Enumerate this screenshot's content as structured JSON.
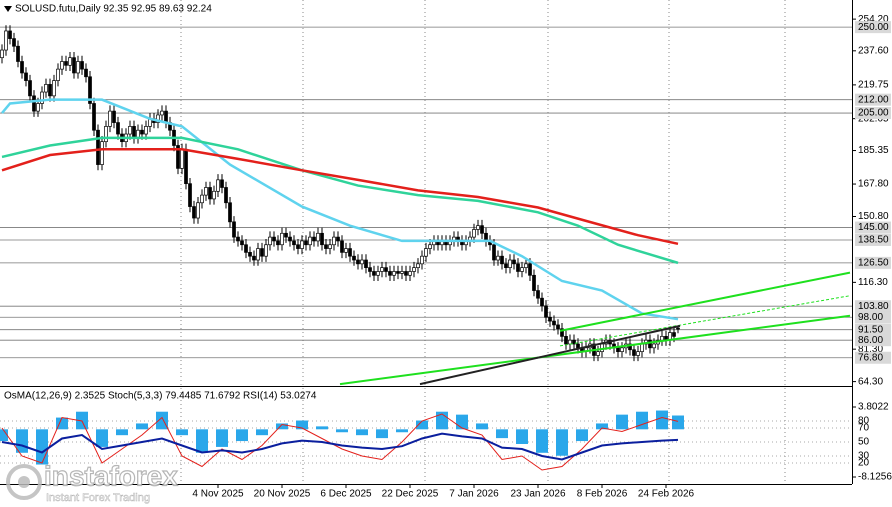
{
  "chart_data": [
    {
      "type": "candlestick",
      "title": "SOLUSD.futu,Daily  92.35 92.95 89.63 92.24",
      "xlim": [
        0,
        212
      ],
      "xticks": [
        {
          "value": 54,
          "label": "4 Nov 2025"
        },
        {
          "value": 70,
          "label": "20 Nov 2025"
        },
        {
          "value": 86,
          "label": "6 Dec 2025"
        },
        {
          "value": 102,
          "label": "22 Dec 2025"
        },
        {
          "value": 118,
          "label": "7 Jan 2026"
        },
        {
          "value": 134,
          "label": "23 Jan 2026"
        },
        {
          "value": 150,
          "label": "8 Feb 2026"
        },
        {
          "value": 166,
          "label": "24 Feb 2026"
        }
      ],
      "ylim": [
        62,
        261.6
      ],
      "yticks": [
        {
          "value": 254.2,
          "label": "254.20"
        },
        {
          "value": 237.6,
          "label": "237.60"
        },
        {
          "value": 219.75,
          "label": "219.75"
        },
        {
          "value": 202.05,
          "label": "202.05"
        },
        {
          "value": 185.35,
          "label": "185.35"
        },
        {
          "value": 167.8,
          "label": "167.80"
        },
        {
          "value": 150.8,
          "label": "150.80"
        },
        {
          "value": 116.3,
          "label": "116.30"
        },
        {
          "value": 81.3,
          "label": "81.30"
        },
        {
          "value": 64.3,
          "label": "64.30"
        }
      ],
      "levels": [
        {
          "value": 250,
          "label": "250.00"
        },
        {
          "value": 212,
          "label": "212.00"
        },
        {
          "value": 205,
          "label": "205.00"
        },
        {
          "value": 145,
          "label": "145.00"
        },
        {
          "value": 138.5,
          "label": "138.50"
        },
        {
          "value": 126.5,
          "label": "126.50"
        },
        {
          "value": 103.8,
          "label": "103.80"
        },
        {
          "value": 98,
          "label": "98.00"
        },
        {
          "value": 91.5,
          "label": "91.50"
        },
        {
          "value": 86,
          "label": "86.00"
        },
        {
          "value": 76.8,
          "label": "76.80"
        }
      ],
      "open": [
        234,
        238,
        248,
        244,
        240,
        232,
        226,
        222,
        214,
        206,
        210,
        216,
        220,
        214,
        222,
        228,
        232,
        230,
        234,
        226,
        232,
        228,
        224,
        210,
        196,
        178,
        190,
        198,
        206,
        200,
        194,
        190,
        194,
        198,
        192,
        196,
        194,
        198,
        202,
        200,
        204,
        206,
        200,
        196,
        188,
        176,
        186,
        168,
        156,
        150,
        158,
        162,
        166,
        160,
        164,
        170,
        166,
        158,
        148,
        140,
        138,
        136,
        132,
        130,
        128,
        134,
        130,
        136,
        140,
        138,
        136,
        142,
        140,
        138,
        136,
        134,
        138,
        136,
        140,
        138,
        142,
        136,
        134,
        136,
        140,
        138,
        132,
        134,
        130,
        128,
        126,
        128,
        124,
        122,
        120,
        122,
        124,
        122,
        120,
        122,
        121,
        122,
        120,
        122,
        124,
        126,
        130,
        134,
        136,
        138,
        136,
        138,
        136,
        138,
        140,
        138,
        136,
        138,
        140,
        144,
        146,
        142,
        138,
        136,
        128,
        130,
        126,
        124,
        128,
        126,
        122,
        124,
        126,
        120,
        112,
        108,
        104,
        98,
        96,
        94,
        92,
        88,
        84,
        86,
        84,
        82,
        80,
        82,
        84,
        78,
        80,
        84,
        86,
        84,
        82,
        80,
        82,
        84,
        81,
        78,
        80,
        84,
        86,
        82,
        84,
        86,
        88,
        86,
        90,
        92.35
      ],
      "high": [
        241,
        251,
        251,
        247,
        243,
        235,
        229,
        225,
        217,
        213,
        219,
        223,
        223,
        225,
        231,
        235,
        235,
        237,
        237,
        235,
        235,
        231,
        227,
        213,
        199,
        193,
        201,
        209,
        209,
        203,
        197,
        197,
        201,
        201,
        199,
        199,
        201,
        205,
        205,
        207,
        209,
        209,
        203,
        199,
        191,
        189,
        189,
        171,
        159,
        161,
        165,
        169,
        169,
        167,
        173,
        173,
        169,
        161,
        151,
        143,
        141,
        139,
        135,
        133,
        137,
        137,
        139,
        143,
        143,
        141,
        145,
        145,
        143,
        141,
        139,
        141,
        141,
        143,
        143,
        145,
        145,
        139,
        139,
        143,
        143,
        141,
        137,
        137,
        133,
        131,
        131,
        131,
        127,
        125,
        125,
        127,
        127,
        125,
        125,
        125,
        125,
        125,
        125,
        127,
        129,
        133,
        137,
        139,
        141,
        141,
        141,
        141,
        141,
        143,
        143,
        141,
        141,
        143,
        147,
        149,
        149,
        145,
        141,
        139,
        133,
        133,
        129,
        131,
        131,
        129,
        127,
        129,
        129,
        123,
        115,
        111,
        107,
        101,
        99,
        97,
        95,
        91,
        89,
        89,
        87,
        85,
        85,
        87,
        87,
        83,
        87,
        89,
        89,
        87,
        85,
        85,
        87,
        87,
        84,
        83,
        87,
        89,
        89,
        87,
        89,
        91,
        91,
        93,
        93,
        92.95
      ],
      "low": [
        231,
        235,
        241,
        237,
        229,
        223,
        219,
        211,
        203,
        203,
        207,
        213,
        211,
        211,
        219,
        225,
        227,
        227,
        223,
        223,
        225,
        221,
        207,
        193,
        175,
        175,
        187,
        195,
        197,
        191,
        187,
        187,
        191,
        189,
        189,
        191,
        191,
        195,
        197,
        197,
        201,
        197,
        193,
        185,
        173,
        173,
        165,
        153,
        147,
        147,
        155,
        159,
        157,
        157,
        161,
        163,
        155,
        145,
        137,
        135,
        133,
        129,
        127,
        125,
        125,
        127,
        127,
        133,
        135,
        133,
        133,
        137,
        135,
        133,
        131,
        131,
        133,
        133,
        135,
        135,
        133,
        131,
        131,
        133,
        135,
        129,
        129,
        127,
        125,
        123,
        123,
        121,
        119,
        117,
        117,
        119,
        119,
        117,
        117,
        118,
        118,
        117,
        117,
        119,
        121,
        123,
        127,
        131,
        133,
        133,
        133,
        133,
        133,
        135,
        135,
        133,
        133,
        135,
        137,
        141,
        139,
        135,
        133,
        125,
        125,
        123,
        121,
        121,
        123,
        119,
        119,
        121,
        117,
        109,
        105,
        101,
        95,
        93,
        91,
        89,
        85,
        81,
        81,
        81,
        79,
        77,
        77,
        79,
        75,
        75,
        77,
        81,
        81,
        79,
        77,
        77,
        79,
        78,
        75,
        75,
        77,
        81,
        79,
        79,
        81,
        83,
        83,
        83,
        85,
        89.63
      ],
      "close": [
        238,
        248,
        244,
        240,
        232,
        226,
        222,
        214,
        206,
        210,
        216,
        220,
        214,
        222,
        228,
        232,
        230,
        234,
        226,
        232,
        228,
        224,
        210,
        196,
        178,
        190,
        198,
        206,
        200,
        194,
        190,
        194,
        198,
        192,
        196,
        194,
        198,
        202,
        200,
        204,
        206,
        200,
        196,
        188,
        176,
        186,
        168,
        156,
        150,
        158,
        162,
        166,
        160,
        164,
        170,
        166,
        158,
        148,
        140,
        138,
        136,
        132,
        130,
        128,
        134,
        130,
        136,
        140,
        138,
        136,
        142,
        140,
        138,
        136,
        134,
        138,
        136,
        140,
        138,
        142,
        136,
        134,
        136,
        140,
        138,
        132,
        134,
        130,
        128,
        126,
        128,
        124,
        122,
        120,
        122,
        124,
        122,
        120,
        122,
        121,
        122,
        120,
        122,
        124,
        126,
        130,
        134,
        136,
        138,
        136,
        138,
        136,
        138,
        140,
        138,
        136,
        138,
        140,
        144,
        146,
        142,
        138,
        136,
        128,
        130,
        126,
        124,
        128,
        126,
        122,
        124,
        126,
        120,
        112,
        108,
        104,
        98,
        96,
        94,
        92,
        88,
        84,
        86,
        84,
        82,
        80,
        82,
        84,
        78,
        80,
        84,
        86,
        84,
        82,
        80,
        82,
        84,
        81,
        78,
        80,
        84,
        86,
        82,
        84,
        86,
        88,
        86,
        90,
        88,
        92.24
      ],
      "series": [
        {
          "color": "#5fd3ee",
          "x": [
            0,
            2,
            12,
            25,
            37,
            45,
            57,
            75,
            87,
            100,
            110,
            122,
            130,
            140,
            150,
            160,
            169
          ],
          "values": [
            205,
            210,
            212,
            212,
            202,
            198,
            178,
            156,
            146,
            138,
            138,
            138,
            130,
            117,
            112,
            100,
            97
          ]
        },
        {
          "color": "#2fd39a",
          "x": [
            0,
            12,
            25,
            45,
            59,
            75,
            89,
            104,
            119,
            134,
            144,
            154,
            169
          ],
          "values": [
            182,
            188,
            192,
            192,
            186,
            175,
            167,
            162,
            159,
            153,
            146,
            136,
            126.5
          ]
        },
        {
          "color": "#e3201b",
          "x": [
            0,
            12,
            25,
            45,
            59,
            75,
            89,
            104,
            119,
            134,
            146,
            159,
            169
          ],
          "values": [
            175,
            183,
            186,
            186,
            181,
            175,
            170,
            164.5,
            161,
            155.5,
            148.5,
            141,
            136.5
          ]
        }
      ],
      "trend_lines": [
        {
          "color": "#1ee01e",
          "x": [
            139.5,
            212
          ],
          "values": [
            90.9,
            121.4
          ],
          "dash": false
        },
        {
          "color": "#1ee01e",
          "x": [
            84.5,
            212
          ],
          "values": [
            63,
            98.8
          ],
          "dash": false
        },
        {
          "color": "#1ee01e",
          "x": [
            139.5,
            212
          ],
          "values": [
            83,
            109.3
          ],
          "dash": true
        },
        {
          "color": "#222222",
          "x": [
            104.5,
            169.5
          ],
          "values": [
            63,
            93.5
          ],
          "dash": false
        }
      ]
    },
    {
      "type": "oscillator",
      "label": "OsMA(12,26,9) 2.3525 Stoch(5,3,3) 79.4485 71.6792 RSI(14) 53.0274",
      "xlim": [
        0,
        212
      ],
      "x": [
        0,
        5,
        10,
        15,
        20,
        25,
        30,
        35,
        40,
        45,
        50,
        55,
        60,
        65,
        70,
        75,
        80,
        85,
        90,
        95,
        100,
        105,
        110,
        115,
        120,
        125,
        130,
        135,
        140,
        145,
        150,
        155,
        160,
        165,
        169
      ],
      "histogram": {
        "color": "#2aa7ea",
        "values": [
          -2,
          -4,
          -6,
          2,
          3,
          -3,
          -1,
          1,
          3,
          -1,
          -4,
          -3,
          -2,
          -1,
          1,
          1.5,
          0.5,
          -0.5,
          -1,
          -1.5,
          -0.5,
          1.5,
          3,
          2.5,
          1,
          -1.5,
          -2.5,
          -4,
          -4.5,
          -2,
          1,
          2.5,
          3,
          3.2,
          2.3525
        ]
      },
      "ylim": [
        -8.1256,
        3.8022
      ],
      "yticks": [
        3.8022,
        -8.1256
      ],
      "y2lim": [
        0,
        100
      ],
      "y2ticks": [
        80,
        70,
        50,
        30,
        20
      ],
      "series": [
        {
          "color": "#e3201b",
          "axis": "y2",
          "values": [
            70,
            30,
            20,
            85,
            80,
            20,
            40,
            60,
            85,
            30,
            15,
            40,
            25,
            45,
            75,
            70,
            55,
            40,
            30,
            25,
            50,
            80,
            90,
            70,
            60,
            25,
            30,
            10,
            15,
            40,
            70,
            65,
            75,
            85,
            79.4485
          ]
        },
        {
          "color": "#0b1f9e",
          "axis": "y2",
          "values": [
            50,
            45,
            35,
            55,
            60,
            40,
            45,
            50,
            55,
            45,
            35,
            38,
            35,
            40,
            48,
            52,
            50,
            45,
            42,
            40,
            44,
            55,
            62,
            58,
            55,
            42,
            40,
            30,
            25,
            35,
            45,
            48,
            50,
            52,
            53.0274
          ]
        }
      ]
    }
  ],
  "watermark": {
    "brand": "instaforex",
    "tagline": "Instant Forex Trading"
  }
}
